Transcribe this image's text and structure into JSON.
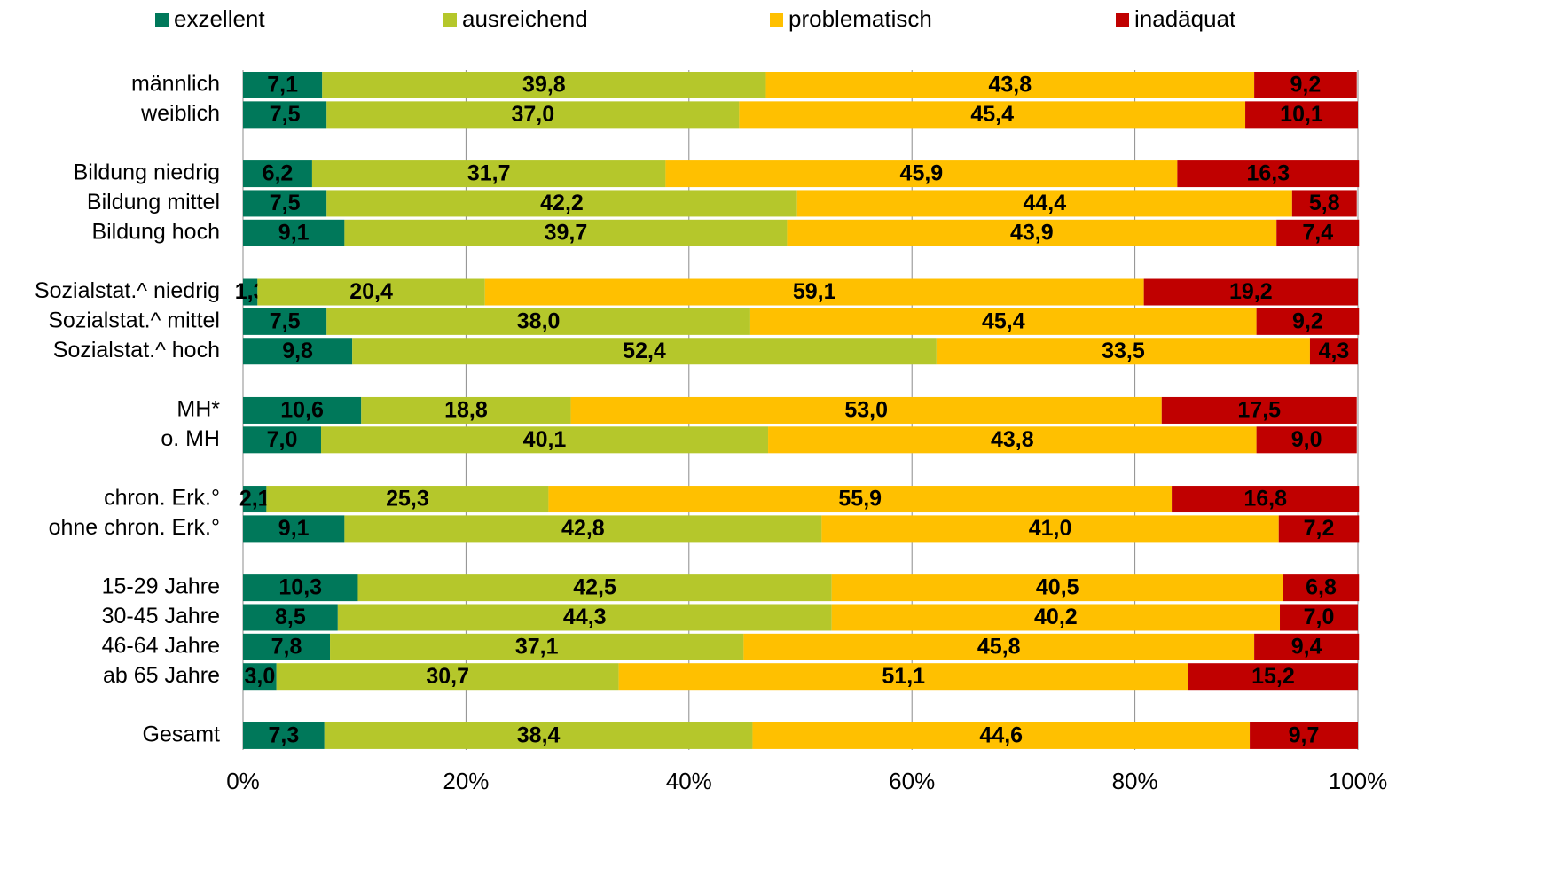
{
  "chart_data": {
    "type": "stacked_bar_horizontal",
    "categories": [
      "männlich",
      "weiblich",
      null,
      "Bildung niedrig",
      "Bildung mittel",
      "Bildung hoch",
      null,
      "Sozialstat.^ niedrig",
      "Sozialstat.^ mittel",
      "Sozialstat.^ hoch",
      null,
      "MH*",
      "o. MH",
      null,
      "chron. Erk.°",
      "ohne chron. Erk.°",
      null,
      "15-29 Jahre",
      "30-45 Jahre",
      "46-64 Jahre",
      "ab 65 Jahre",
      null,
      "Gesamt"
    ],
    "series": [
      {
        "name": "exzellent",
        "color": "#00785a",
        "values": [
          7.1,
          7.5,
          null,
          6.2,
          7.5,
          9.1,
          null,
          1.3,
          7.5,
          9.8,
          null,
          10.6,
          7.0,
          null,
          2.1,
          9.1,
          null,
          10.3,
          8.5,
          7.8,
          3.0,
          null,
          7.3
        ],
        "value_labels": [
          "7,1",
          "7,5",
          null,
          "6,2",
          "7,5",
          "9,1",
          null,
          "1,3",
          "7,5",
          "9,8",
          null,
          "10,6",
          "7,0",
          null,
          "2,1",
          "9,1",
          null,
          "10,3",
          "8,5",
          "7,8",
          "3,0",
          null,
          "7,3"
        ]
      },
      {
        "name": "ausreichend",
        "color": "#b5c72b",
        "values": [
          39.8,
          37.0,
          null,
          31.7,
          42.2,
          39.7,
          null,
          20.4,
          38.0,
          52.4,
          null,
          18.8,
          40.1,
          null,
          25.3,
          42.8,
          null,
          42.5,
          44.3,
          37.1,
          30.7,
          null,
          38.4
        ],
        "value_labels": [
          "39,8",
          "37,0",
          null,
          "31,7",
          "42,2",
          "39,7",
          null,
          "20,4",
          "38,0",
          "52,4",
          null,
          "18,8",
          "40,1",
          null,
          "25,3",
          "42,8",
          null,
          "42,5",
          "44,3",
          "37,1",
          "30,7",
          null,
          "38,4"
        ]
      },
      {
        "name": "problematisch",
        "color": "#ffc000",
        "values": [
          43.8,
          45.4,
          null,
          45.9,
          44.4,
          43.9,
          null,
          59.1,
          45.4,
          33.5,
          null,
          53.0,
          43.8,
          null,
          55.9,
          41.0,
          null,
          40.5,
          40.2,
          45.8,
          51.1,
          null,
          44.6
        ],
        "value_labels": [
          "43,8",
          "45,4",
          null,
          "45,9",
          "44,4",
          "43,9",
          null,
          "59,1",
          "45,4",
          "33,5",
          null,
          "53,0",
          "43,8",
          null,
          "55,9",
          "41,0",
          null,
          "40,5",
          "40,2",
          "45,8",
          "51,1",
          null,
          "44,6"
        ]
      },
      {
        "name": "inadäquat",
        "color": "#c00000",
        "values": [
          9.2,
          10.1,
          null,
          16.3,
          5.8,
          7.4,
          null,
          19.2,
          9.2,
          4.3,
          null,
          17.5,
          9.0,
          null,
          16.8,
          7.2,
          null,
          6.8,
          7.0,
          9.4,
          15.2,
          null,
          9.7
        ],
        "value_labels": [
          "9,2",
          "10,1",
          null,
          "16,3",
          "5,8",
          "7,4",
          null,
          "19,2",
          "9,2",
          "4,3",
          null,
          "17,5",
          "9,0",
          null,
          "16,8",
          "7,2",
          null,
          "6,8",
          "7,0",
          "9,4",
          "15,2",
          null,
          "9,7"
        ]
      }
    ],
    "xlim": [
      0,
      100
    ],
    "xticks": [
      {
        "value": 0,
        "label": "0%"
      },
      {
        "value": 20,
        "label": "20%"
      },
      {
        "value": 40,
        "label": "40%"
      },
      {
        "value": 60,
        "label": "60%"
      },
      {
        "value": 80,
        "label": "80%"
      },
      {
        "value": 100,
        "label": "100%"
      }
    ],
    "grid": true,
    "legend": "top"
  }
}
